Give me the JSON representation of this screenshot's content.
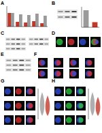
{
  "panels": [
    {
      "label": "A"
    },
    {
      "label": "B"
    },
    {
      "label": "C"
    },
    {
      "label": "D"
    },
    {
      "label": "E"
    },
    {
      "label": "F"
    },
    {
      "label": "G"
    },
    {
      "label": "H"
    }
  ],
  "chart_data": [
    {
      "type": "bar",
      "categories": [
        null,
        null,
        null,
        null,
        null
      ],
      "series": [
        {
          "color": "#c0392b",
          "values": [
            1.0,
            0.35,
            0.3,
            0.4,
            0.25
          ]
        },
        {
          "color": "#9a9a9a",
          "values": [
            1.0,
            0.9,
            0.85,
            0.95,
            0.8
          ]
        }
      ],
      "ylim": [
        0,
        1.5
      ],
      "tick_labels": false
    },
    {
      "type": "bar",
      "categories": [
        null,
        null
      ],
      "values": [
        1.0,
        0.3
      ],
      "colors": [
        "#9a9a9a",
        "#c0392b"
      ],
      "ylim": [
        0,
        1.2
      ],
      "tick_labels": false
    }
  ]
}
